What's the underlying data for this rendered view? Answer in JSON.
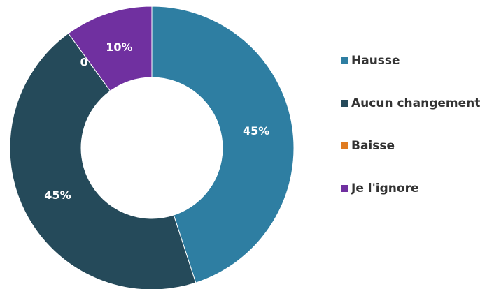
{
  "chart_data": {
    "type": "donut",
    "categories": [
      "Hausse",
      "Aucun changement",
      "Baisse",
      "Je l'ignore"
    ],
    "values": [
      45,
      45,
      0,
      10
    ],
    "value_labels": [
      "45%",
      "45%",
      "0%",
      "10%"
    ],
    "colors": [
      "#2e7ea2",
      "#254a5a",
      "#e07b20",
      "#7030a0"
    ],
    "legend": "right"
  }
}
